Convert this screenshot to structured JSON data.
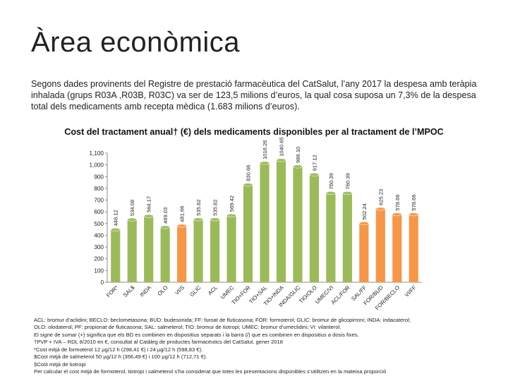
{
  "page": {
    "title": "Àrea econòmica",
    "intro": "Segons dades provinents del Registre de prestació farmacèutica del CatSalut, l’any 2017 la despesa amb teràpia inhalada (grups R03A ,R03B, R03C) va ser de 123,5 milions d’euros, la qual cosa suposa un 7,3% de la despesa total dels medicaments amb recepta mèdica (1.683 milions d’euros)."
  },
  "chart_data": {
    "type": "bar",
    "title": "Cost del tractament anual† (€) dels medicaments disponibles per al tractament de l’MPOC",
    "xlabel": "",
    "ylabel": "",
    "ylim": [
      0,
      1100
    ],
    "yticks": [
      "0",
      "100",
      "200",
      "300",
      "400",
      "500",
      "600",
      "700",
      "800",
      "900",
      "1,000",
      "1,100"
    ],
    "grid": false,
    "categories": [
      "FOR*",
      "SAL$",
      "INDA",
      "OLO",
      "VI/S",
      "GLIC",
      "ACL",
      "UMEC",
      "TIO+FOR",
      "TIO+SAL",
      "TIO+INDA",
      "INDA/GLIC",
      "TIO/OLO",
      "UMEC/VI",
      "ACL/FOR",
      "SAL/FF",
      "FOR/BUD",
      "FOR/BECLO",
      "VI/FF"
    ],
    "values": [
      448.12,
      534.08,
      564.17,
      469.03,
      481.66,
      535.82,
      535.82,
      569.42,
      830.66,
      1016.26,
      1040.65,
      986.1,
      917.12,
      760.39,
      760.39,
      502.24,
      625.23,
      578.66,
      578.66
    ],
    "labels": [
      "448.12",
      "534.08",
      "564.17",
      "469.03",
      "481.66",
      "535.82",
      "535.82",
      "569.42",
      "830.66",
      "1016.26",
      "1040.65",
      "986.10",
      "917.12",
      "760.39",
      "760.39",
      "502.24",
      "625.23",
      "578.66",
      "578.66"
    ],
    "colors": [
      "#9bbb59",
      "#9bbb59",
      "#9bbb59",
      "#9bbb59",
      "#f79646",
      "#9bbb59",
      "#9bbb59",
      "#9bbb59",
      "#9bbb59",
      "#9bbb59",
      "#9bbb59",
      "#9bbb59",
      "#9bbb59",
      "#9bbb59",
      "#9bbb59",
      "#f79646",
      "#f79646",
      "#f79646",
      "#f79646"
    ]
  },
  "notes": [
    "ACL: bromur d’aclidini; BECLO: beclometasona; BUD: budesonida; FF: furoat de fluticasona; FOR: formoterol; GLIC: bromur de glicopirroni; INDA: indacaterol;",
    "OLO: olodaterol; PF: propionat de fluticasona; SAL: salmeterol; TIO: bromur de tiotropi; UMEC: bromur d’umeclidini; VI: vilanterol.",
    "El signe de sumar (+) significa que els BD es combinen en dispositius separats i la barra (/) que es combinen en dispositius a dosis fixes.",
    "†PVP + IVA – RDL 8/2010 en €, consultat al Catàleg de productes farmacèutics del CatSalut, gener 2018",
    "*Cost mitjà de formoterol 12 µg/12 h (298,41 €) i 24 µg/12 h (598,83 €).",
    "$Cost mitjà de salmeterol 50 µg/12 h (356,49 €) i 100 µg/12 h (712,71 €).",
    "§Cost mitjà de tiotropi",
    "Per calcular el cost mitjà de formoterol, tiotropi i salmeterol s’ha considerat que totes les presentacions disponibles s’utilitzen en la mateixa proporció"
  ]
}
